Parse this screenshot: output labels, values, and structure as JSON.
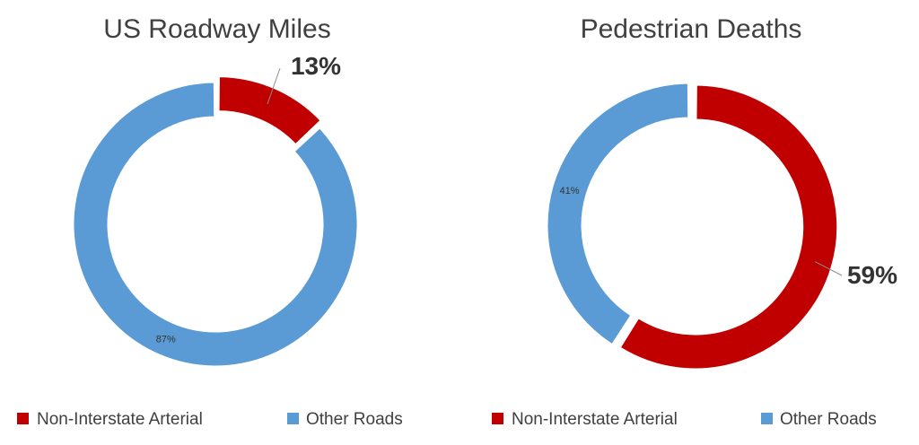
{
  "colors": {
    "arterial": "#c00000",
    "other": "#5b9bd5",
    "title_text": "#404040",
    "label_text": "#333333",
    "leader_line": "#8c8c8c"
  },
  "chart_data": [
    {
      "type": "pie",
      "variant": "donut",
      "title": "US Roadway Miles",
      "categories": [
        "Non-Interstate Arterial",
        "Other Roads"
      ],
      "values": [
        13,
        87
      ],
      "value_labels": [
        "13%",
        "87%"
      ],
      "emphasized": [
        true,
        false
      ],
      "legend": "bottom",
      "legend_entries": [
        "Non-Interstate Arterial",
        "Other Roads"
      ],
      "exploded_slice": "Non-Interstate Arterial"
    },
    {
      "type": "pie",
      "variant": "donut",
      "title": "Pedestrian Deaths",
      "categories": [
        "Non-Interstate Arterial",
        "Other Roads"
      ],
      "values": [
        59,
        41
      ],
      "value_labels": [
        "59%",
        "41%"
      ],
      "emphasized": [
        true,
        false
      ],
      "legend": "bottom",
      "legend_entries": [
        "Non-Interstate Arterial",
        "Other Roads"
      ],
      "exploded_slice": "Non-Interstate Arterial"
    }
  ]
}
